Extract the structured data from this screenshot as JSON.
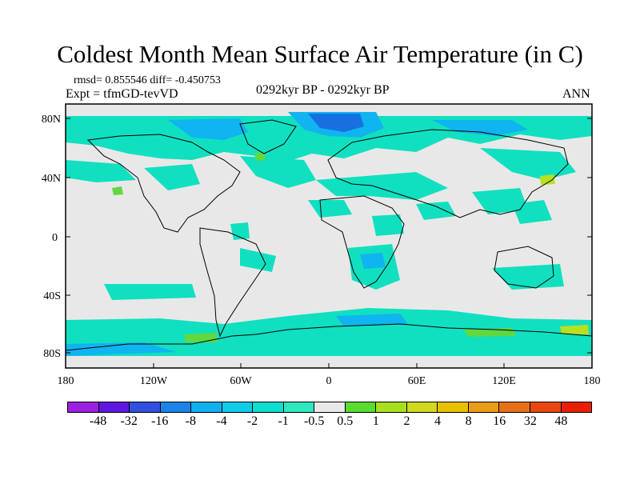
{
  "title": "Coldest Month Mean Surface Air Temperature (in C)",
  "stats_text": "rmsd= 0.855546  diff= -0.450753",
  "experiment_text": "Expt = tfmGD-tevVD",
  "period_text": "0292kyr BP - 0292kyr BP",
  "season_text": "ANN",
  "map": {
    "lat_ticks": [
      "80N",
      "40N",
      "0",
      "40S",
      "80S"
    ],
    "lon_ticks": [
      "180",
      "120W",
      "60W",
      "0",
      "60E",
      "120E",
      "180"
    ],
    "colors": {
      "ocean_fill": "#e8e8e8",
      "cyan": "#10e0c0",
      "mid_blue": "#10b4f0",
      "dark_blue": "#1870e0",
      "green": "#60d840",
      "yellow_green": "#b8e020",
      "coast": "#000000"
    }
  },
  "colorbar": {
    "colors": [
      "#9c20e0",
      "#6018e0",
      "#3050e0",
      "#1c84e8",
      "#10b0f0",
      "#10cce8",
      "#10dcd0",
      "#30e8c0",
      "#e8e8e8",
      "#58dc30",
      "#a8e020",
      "#d0d820",
      "#e8c000",
      "#e89c18",
      "#e87018",
      "#e84810",
      "#e82000"
    ],
    "labels": [
      "-48",
      "-32",
      "-16",
      "-8",
      "-4",
      "-2",
      "-1",
      "-0.5",
      "0.5",
      "1",
      "2",
      "4",
      "8",
      "16",
      "32",
      "48"
    ]
  }
}
